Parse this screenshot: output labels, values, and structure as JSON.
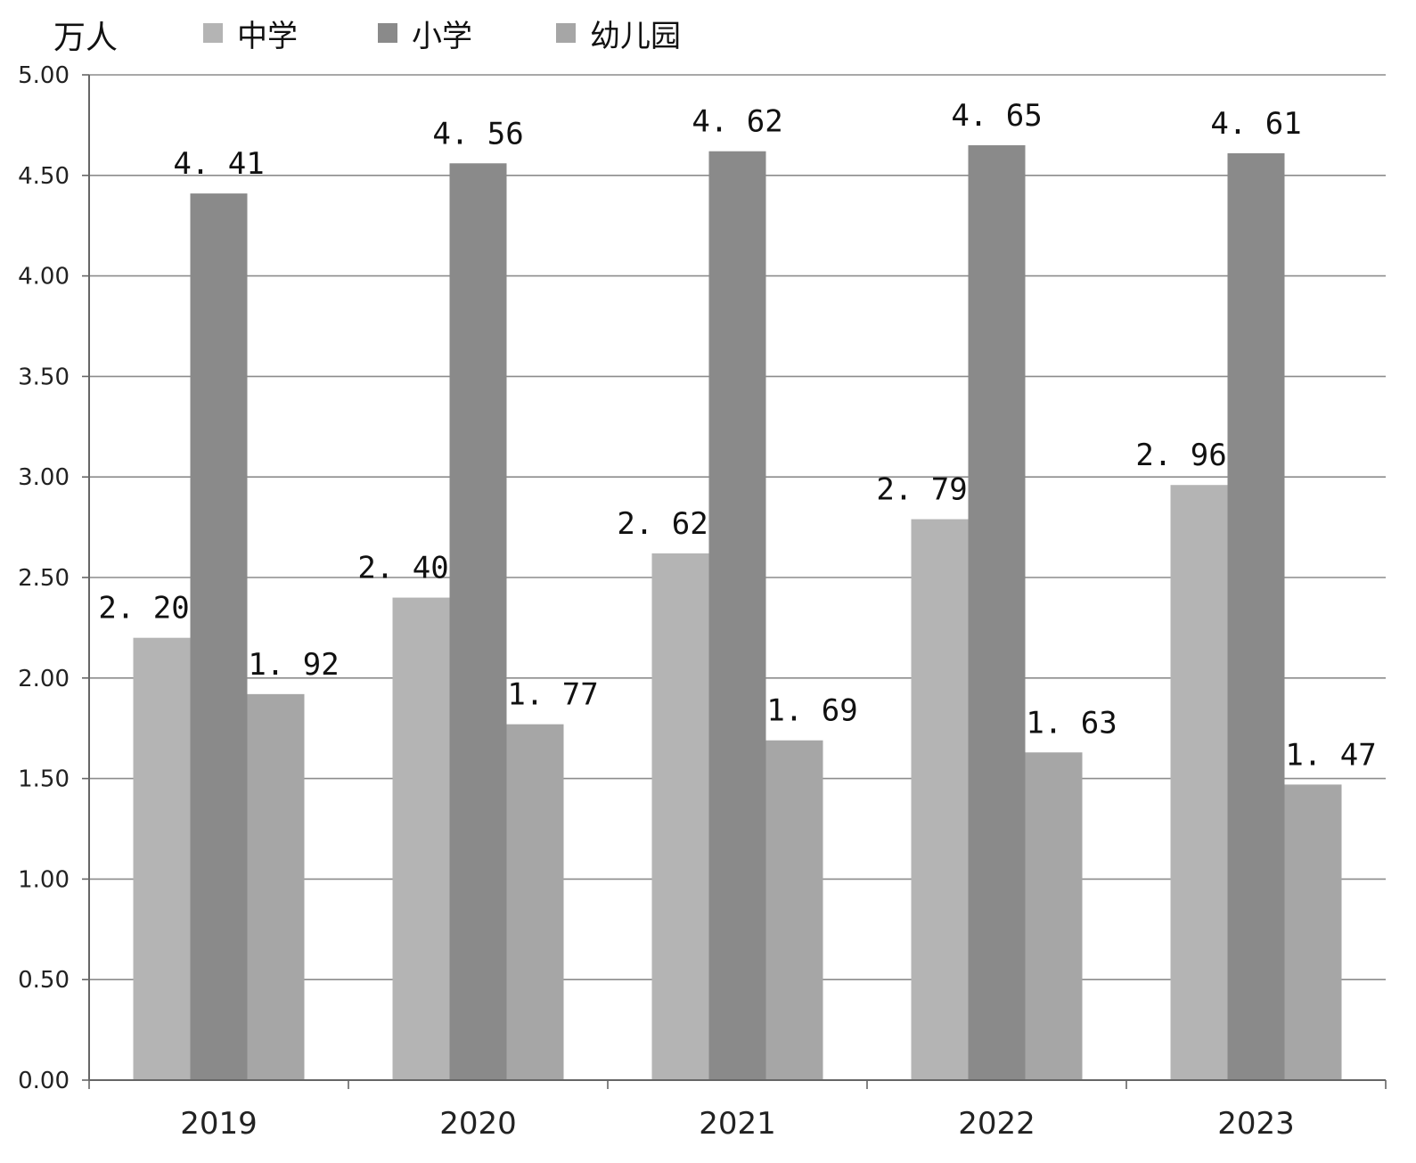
{
  "chart_data": {
    "type": "bar",
    "unit": "万人",
    "categories": [
      "2019",
      "2020",
      "2021",
      "2022",
      "2023"
    ],
    "series": [
      {
        "name": "中学",
        "values": [
          2.2,
          2.4,
          2.62,
          2.79,
          2.96
        ],
        "labels": [
          "2. 20",
          "2. 40",
          "2. 62",
          "2. 79",
          "2. 96"
        ],
        "color": "#b4b4b4"
      },
      {
        "name": "小学",
        "values": [
          4.41,
          4.56,
          4.62,
          4.65,
          4.61
        ],
        "labels": [
          "4. 41",
          "4. 56",
          "4. 62",
          "4. 65",
          "4. 61"
        ],
        "color": "#8a8a8a"
      },
      {
        "name": "幼儿园",
        "values": [
          1.92,
          1.77,
          1.69,
          1.63,
          1.47
        ],
        "labels": [
          "1. 92",
          "1. 77",
          "1. 69",
          "1. 63",
          "1. 47"
        ],
        "color": "#a6a6a6"
      }
    ],
    "ylim": [
      0,
      5
    ],
    "yticks": [
      "0.00",
      "0.50",
      "1.00",
      "1.50",
      "2.00",
      "2.50",
      "3.00",
      "3.50",
      "4.00",
      "4.50",
      "5.00"
    ],
    "grid": true,
    "legend_position": "top"
  }
}
